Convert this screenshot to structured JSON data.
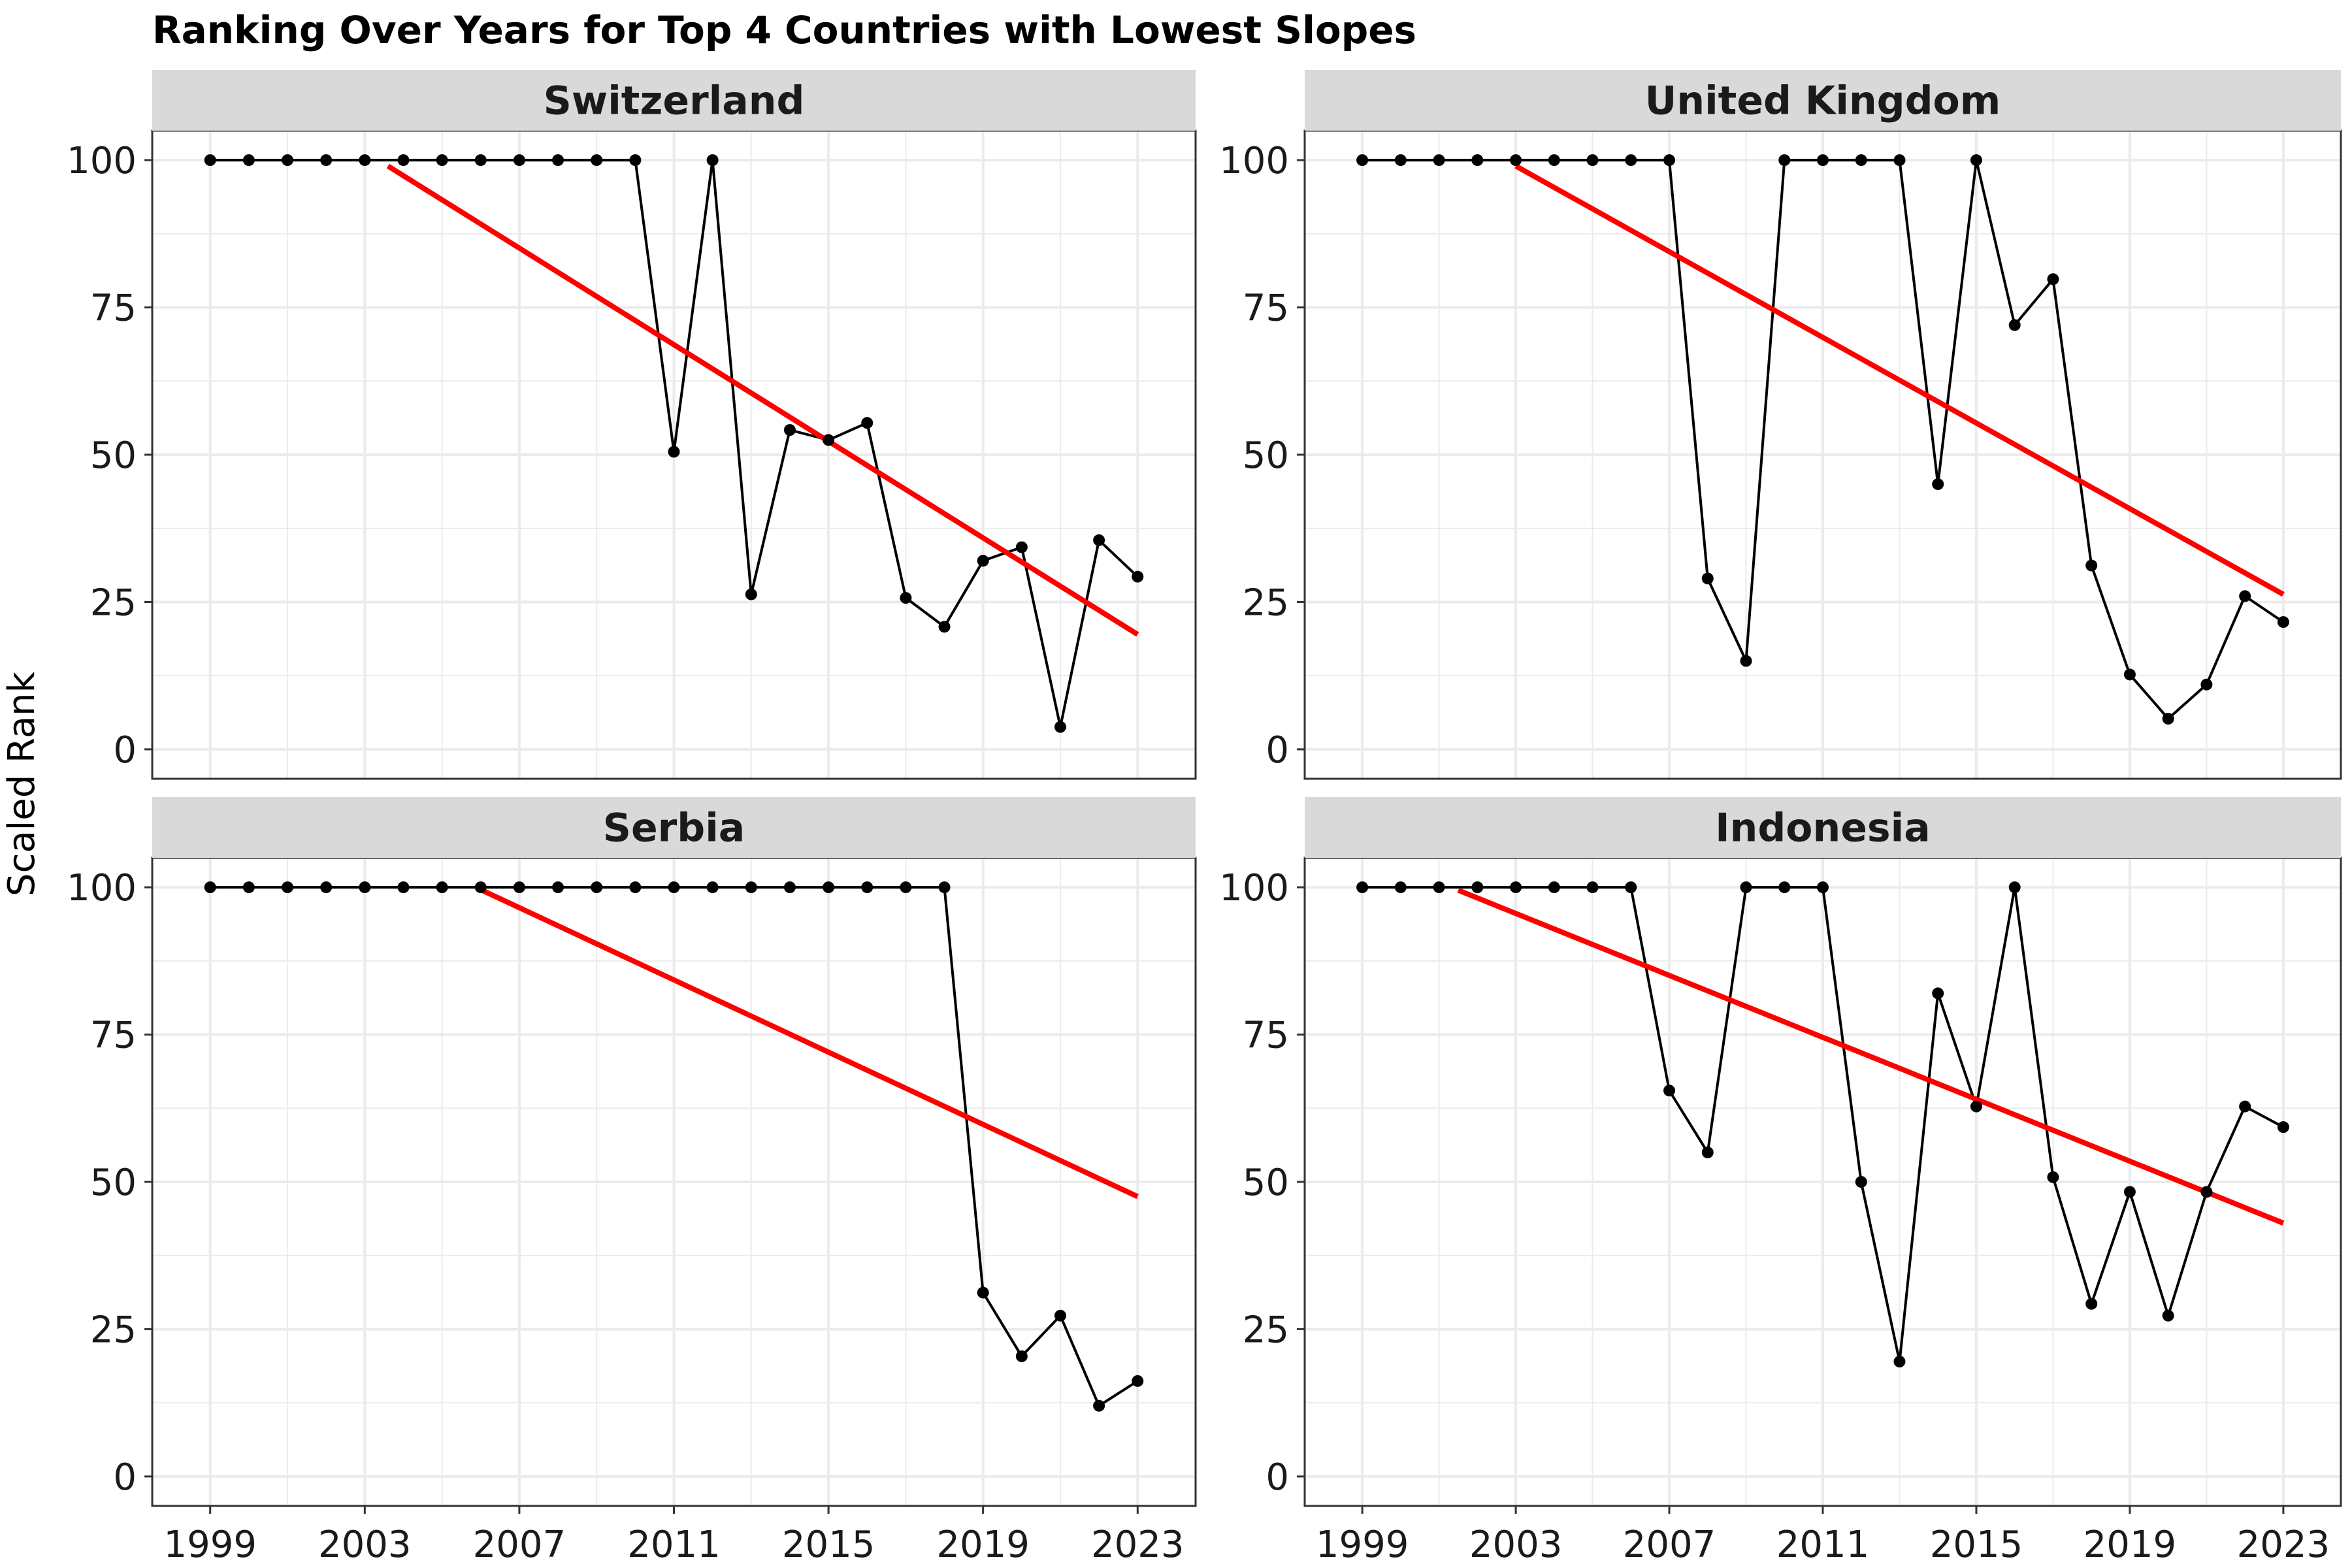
{
  "chart_data": {
    "type": "line",
    "title": "Ranking Over Years for Top 4 Countries with Lowest Slopes",
    "xlabel": "",
    "ylabel": "Scaled Rank",
    "xlim": [
      1997.5,
      2024.5
    ],
    "ylim": [
      -5,
      105
    ],
    "x_ticks": [
      1999,
      2003,
      2007,
      2011,
      2015,
      2019,
      2023
    ],
    "y_ticks": [
      0,
      25,
      50,
      75,
      100
    ],
    "grid": true,
    "x": [
      1999,
      2000,
      2001,
      2002,
      2003,
      2004,
      2005,
      2006,
      2007,
      2008,
      2009,
      2010,
      2011,
      2012,
      2013,
      2014,
      2015,
      2016,
      2017,
      2018,
      2019,
      2020,
      2021,
      2022,
      2023
    ],
    "colors": {
      "series": "#000000",
      "trend": "#ff0000",
      "strip": "#d9d9d9",
      "grid": "#ebebeb",
      "border": "#333333"
    },
    "panels": [
      {
        "name": "Switzerland",
        "values": [
          100,
          100,
          100,
          100,
          100,
          100,
          100,
          100,
          100,
          100,
          100,
          100,
          50.5,
          100,
          26.3,
          54.2,
          52.5,
          55.4,
          25.7,
          20.8,
          32,
          34.3,
          3.8,
          35.5,
          29.3
        ],
        "trend": {
          "x": [
            2003.6,
            2023
          ],
          "y": [
            99,
            19.5
          ]
        }
      },
      {
        "name": "United Kingdom",
        "values": [
          100,
          100,
          100,
          100,
          100,
          100,
          100,
          100,
          100,
          29,
          15,
          100,
          100,
          100,
          100,
          45,
          100,
          72,
          79.8,
          31.2,
          12.7,
          5.2,
          11,
          26,
          21.6
        ],
        "trend": {
          "x": [
            2003,
            2023
          ],
          "y": [
            99,
            26.3
          ]
        }
      },
      {
        "name": "Serbia",
        "values": [
          100,
          100,
          100,
          100,
          100,
          100,
          100,
          100,
          100,
          100,
          100,
          100,
          100,
          100,
          100,
          100,
          100,
          100,
          100,
          100,
          31.2,
          20.4,
          27.3,
          12,
          16.2
        ],
        "trend": {
          "x": [
            2006,
            2023
          ],
          "y": [
            99.6,
            47.5
          ]
        }
      },
      {
        "name": "Indonesia",
        "values": [
          100,
          100,
          100,
          100,
          100,
          100,
          100,
          100,
          65.5,
          55,
          100,
          100,
          100,
          50,
          19.5,
          82,
          62.8,
          100,
          50.8,
          29.3,
          48.3,
          27.3,
          48.3,
          62.8,
          59.3
        ],
        "trend": {
          "x": [
            2001.5,
            2023
          ],
          "y": [
            99.5,
            43
          ]
        }
      }
    ]
  }
}
